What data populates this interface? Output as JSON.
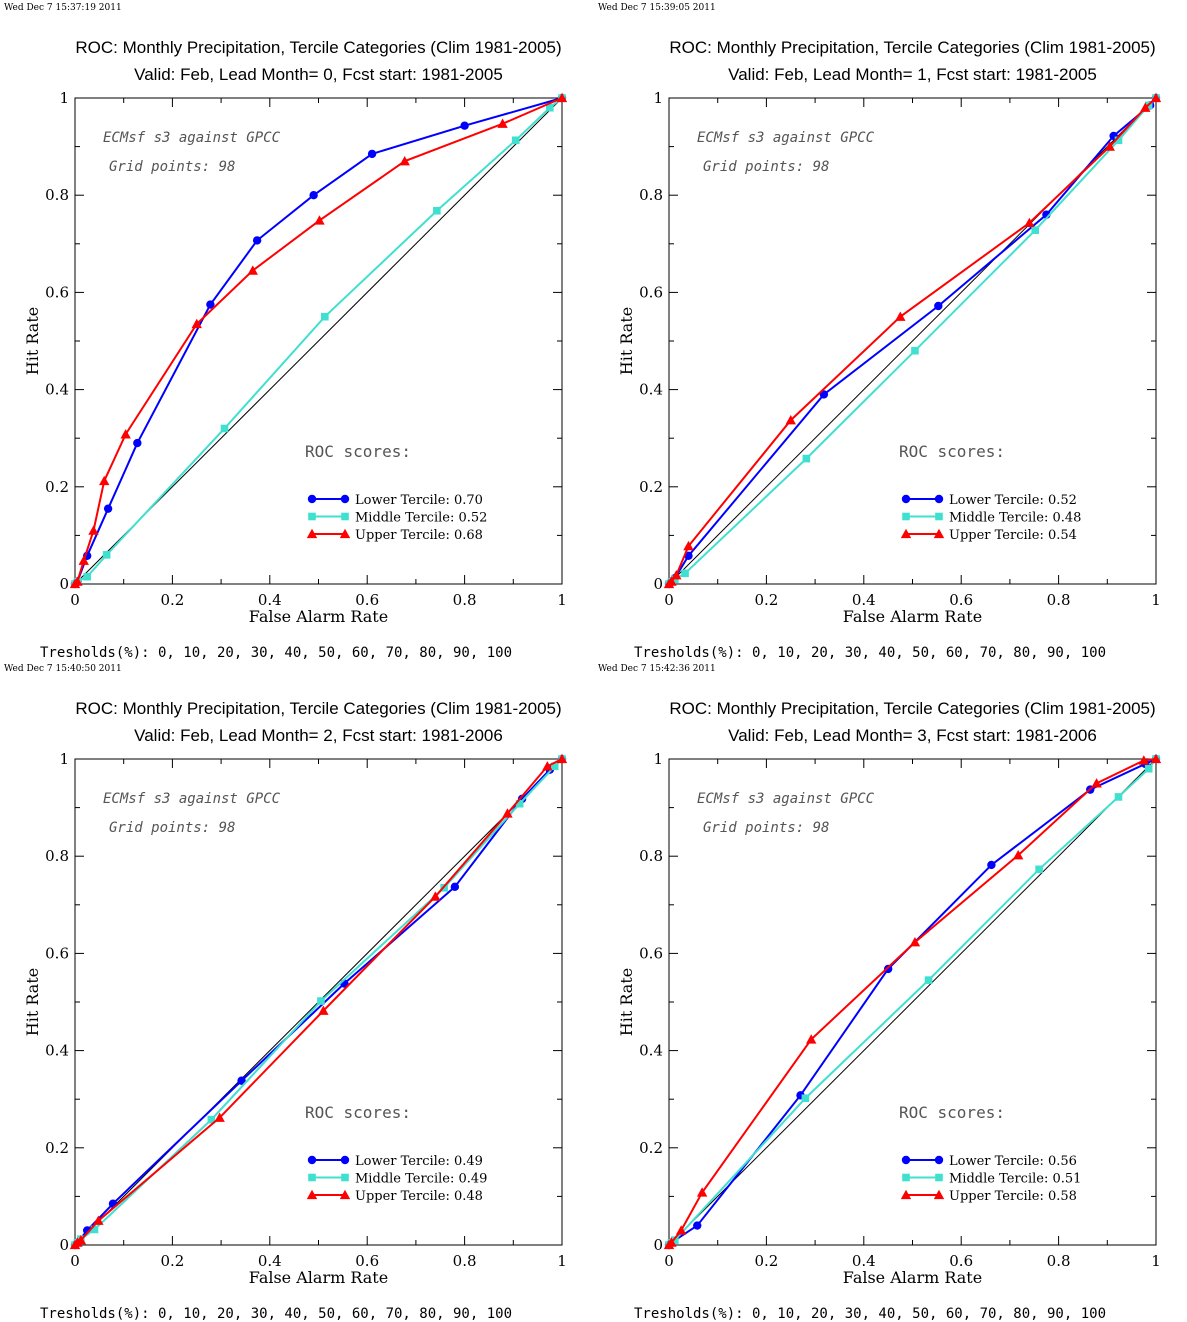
{
  "panels": [
    {
      "timestamp": "Wed Dec  7 15:37:19 2011",
      "title1": "ROC: Monthly Precipitation, Tercile Categories (Clim 1981-2005)",
      "title2": "Valid: Feb, Lead Month= 0, Fcst start: 1981-2005",
      "note1": "ECMsf s3 against GPCC",
      "note2": "Grid points:   98",
      "roc_heading": "ROC scores:",
      "thresholds": "Tresholds(%): 0, 10, 20, 30, 40, 50, 60, 70, 80, 90, 100",
      "chart_data": {
        "type": "line",
        "xlabel": "False Alarm Rate",
        "ylabel": "Hit Rate",
        "xlim": [
          0,
          1
        ],
        "ylim": [
          0,
          1
        ],
        "xticks": [
          "0",
          "0.2",
          "0.4",
          "0.6",
          "0.8",
          "1"
        ],
        "yticks": [
          "0",
          "0.2",
          "0.4",
          "0.6",
          "0.8",
          "1"
        ],
        "legend_position": "lower-right",
        "diagonal": true,
        "series": [
          {
            "name": "Lower Tercile: 0.70",
            "color": "#0000ff",
            "marker": "circle",
            "x": [
              0,
              0.005,
              0.025,
              0.068,
              0.128,
              0.278,
              0.374,
              0.49,
              0.61,
              0.8,
              1.0
            ],
            "y": [
              0,
              0.005,
              0.058,
              0.155,
              0.29,
              0.575,
              0.707,
              0.8,
              0.885,
              0.943,
              1.0
            ]
          },
          {
            "name": "Middle Tercile: 0.52",
            "color": "#40e0d0",
            "marker": "square",
            "x": [
              0,
              0.005,
              0.025,
              0.065,
              0.307,
              0.513,
              0.743,
              0.905,
              0.975,
              1.0
            ],
            "y": [
              0,
              0.005,
              0.015,
              0.06,
              0.32,
              0.55,
              0.768,
              0.913,
              0.98,
              1.0
            ]
          },
          {
            "name": "Upper Tercile: 0.68",
            "color": "#ff0000",
            "marker": "triangle",
            "x": [
              0,
              0.005,
              0.018,
              0.038,
              0.06,
              0.104,
              0.25,
              0.365,
              0.502,
              0.677,
              0.878,
              1.0
            ],
            "y": [
              0,
              0.005,
              0.048,
              0.11,
              0.212,
              0.308,
              0.535,
              0.645,
              0.748,
              0.87,
              0.947,
              1.0
            ]
          }
        ]
      }
    },
    {
      "timestamp": "Wed Dec  7 15:39:05 2011",
      "title1": "ROC: Monthly Precipitation, Tercile Categories (Clim 1981-2005)",
      "title2": "Valid: Feb, Lead Month= 1, Fcst start: 1981-2005",
      "note1": "ECMsf s3 against GPCC",
      "note2": "Grid points:   98",
      "roc_heading": "ROC scores:",
      "thresholds": "Tresholds(%): 0, 10, 20, 30, 40, 50, 60, 70, 80, 90, 100",
      "chart_data": {
        "type": "line",
        "xlabel": "False Alarm Rate",
        "ylabel": "Hit Rate",
        "xlim": [
          0,
          1
        ],
        "ylim": [
          0,
          1
        ],
        "xticks": [
          "0",
          "0.2",
          "0.4",
          "0.6",
          "0.8",
          "1"
        ],
        "yticks": [
          "0",
          "0.2",
          "0.4",
          "0.6",
          "0.8",
          "1"
        ],
        "legend_position": "lower-right",
        "diagonal": true,
        "series": [
          {
            "name": "Lower Tercile: 0.52",
            "color": "#0000ff",
            "marker": "circle",
            "x": [
              0,
              0.005,
              0.012,
              0.04,
              0.318,
              0.553,
              0.775,
              0.913,
              0.988,
              1.0
            ],
            "y": [
              0,
              0.005,
              0.012,
              0.058,
              0.39,
              0.572,
              0.76,
              0.922,
              0.985,
              1.0
            ]
          },
          {
            "name": "Middle Tercile: 0.48",
            "color": "#40e0d0",
            "marker": "square",
            "x": [
              0,
              0.005,
              0.012,
              0.033,
              0.282,
              0.505,
              0.752,
              0.923,
              0.985,
              1.0
            ],
            "y": [
              0,
              0.005,
              0.01,
              0.022,
              0.258,
              0.48,
              0.728,
              0.913,
              0.985,
              1.0
            ]
          },
          {
            "name": "Upper Tercile: 0.54",
            "color": "#ff0000",
            "marker": "triangle",
            "x": [
              0,
              0.005,
              0.015,
              0.04,
              0.25,
              0.475,
              0.74,
              0.905,
              0.978,
              1.0
            ],
            "y": [
              0,
              0.005,
              0.018,
              0.078,
              0.337,
              0.55,
              0.743,
              0.9,
              0.98,
              1.0
            ]
          }
        ]
      }
    },
    {
      "timestamp": "Wed Dec  7 15:40:50 2011",
      "title1": "ROC: Monthly Precipitation, Tercile Categories (Clim 1981-2005)",
      "title2": "Valid: Feb, Lead Month= 2, Fcst start: 1981-2006",
      "note1": "ECMsf s3 against GPCC",
      "note2": "Grid points:   98",
      "roc_heading": "ROC scores:",
      "thresholds": "Tresholds(%): 0, 10, 20, 30, 40, 50, 60, 70, 80, 90, 100",
      "chart_data": {
        "type": "line",
        "xlabel": "False Alarm Rate",
        "ylabel": "Hit Rate",
        "xlim": [
          0,
          1
        ],
        "ylim": [
          0,
          1
        ],
        "xticks": [
          "0",
          "0.2",
          "0.4",
          "0.6",
          "0.8",
          "1"
        ],
        "yticks": [
          "0",
          "0.2",
          "0.4",
          "0.6",
          "0.8",
          "1"
        ],
        "legend_position": "lower-right",
        "diagonal": true,
        "series": [
          {
            "name": "Lower Tercile: 0.49",
            "color": "#0000ff",
            "marker": "circle",
            "x": [
              0,
              0.005,
              0.025,
              0.078,
              0.342,
              0.553,
              0.78,
              0.918,
              0.975,
              1.0
            ],
            "y": [
              0,
              0.005,
              0.03,
              0.085,
              0.338,
              0.538,
              0.737,
              0.918,
              0.978,
              1.0
            ]
          },
          {
            "name": "Middle Tercile: 0.49",
            "color": "#40e0d0",
            "marker": "square",
            "x": [
              0,
              0.005,
              0.012,
              0.04,
              0.28,
              0.505,
              0.758,
              0.913,
              0.985,
              1.0
            ],
            "y": [
              0,
              0.005,
              0.012,
              0.032,
              0.258,
              0.502,
              0.735,
              0.908,
              0.985,
              1.0
            ]
          },
          {
            "name": "Upper Tercile: 0.48",
            "color": "#ff0000",
            "marker": "triangle",
            "x": [
              0,
              0.005,
              0.012,
              0.048,
              0.297,
              0.51,
              0.74,
              0.888,
              0.97,
              1.0
            ],
            "y": [
              0,
              0.005,
              0.01,
              0.05,
              0.262,
              0.482,
              0.717,
              0.888,
              0.985,
              1.0
            ]
          }
        ]
      }
    },
    {
      "timestamp": "Wed Dec  7 15:42:36 2011",
      "title1": "ROC: Monthly Precipitation, Tercile Categories (Clim 1981-2005)",
      "title2": "Valid: Feb, Lead Month= 3, Fcst start: 1981-2006",
      "note1": "ECMsf s3 against GPCC",
      "note2": "Grid points:   98",
      "roc_heading": "ROC scores:",
      "thresholds": "Tresholds(%): 0, 10, 20, 30, 40, 50, 60, 70, 80, 90, 100",
      "chart_data": {
        "type": "line",
        "xlabel": "False Alarm Rate",
        "ylabel": "Hit Rate",
        "xlim": [
          0,
          1
        ],
        "ylim": [
          0,
          1
        ],
        "xticks": [
          "0",
          "0.2",
          "0.4",
          "0.6",
          "0.8",
          "1"
        ],
        "yticks": [
          "0",
          "0.2",
          "0.4",
          "0.6",
          "0.8",
          "1"
        ],
        "legend_position": "lower-right",
        "diagonal": true,
        "series": [
          {
            "name": "Lower Tercile: 0.56",
            "color": "#0000ff",
            "marker": "circle",
            "x": [
              0,
              0.005,
              0.058,
              0.27,
              0.45,
              0.662,
              0.865,
              0.978,
              1.0
            ],
            "y": [
              0,
              0.005,
              0.04,
              0.308,
              0.568,
              0.782,
              0.937,
              0.99,
              1.0
            ]
          },
          {
            "name": "Middle Tercile: 0.51",
            "color": "#40e0d0",
            "marker": "square",
            "x": [
              0,
              0.005,
              0.012,
              0.28,
              0.533,
              0.76,
              0.923,
              0.985,
              1.0
            ],
            "y": [
              0,
              0.005,
              0.01,
              0.302,
              0.545,
              0.773,
              0.922,
              0.98,
              1.0
            ]
          },
          {
            "name": "Upper Tercile: 0.58",
            "color": "#ff0000",
            "marker": "triangle",
            "x": [
              0,
              0.005,
              0.025,
              0.068,
              0.292,
              0.505,
              0.717,
              0.878,
              0.975,
              1.0
            ],
            "y": [
              0,
              0.005,
              0.03,
              0.108,
              0.423,
              0.623,
              0.802,
              0.95,
              0.997,
              1.0
            ]
          }
        ]
      }
    }
  ]
}
